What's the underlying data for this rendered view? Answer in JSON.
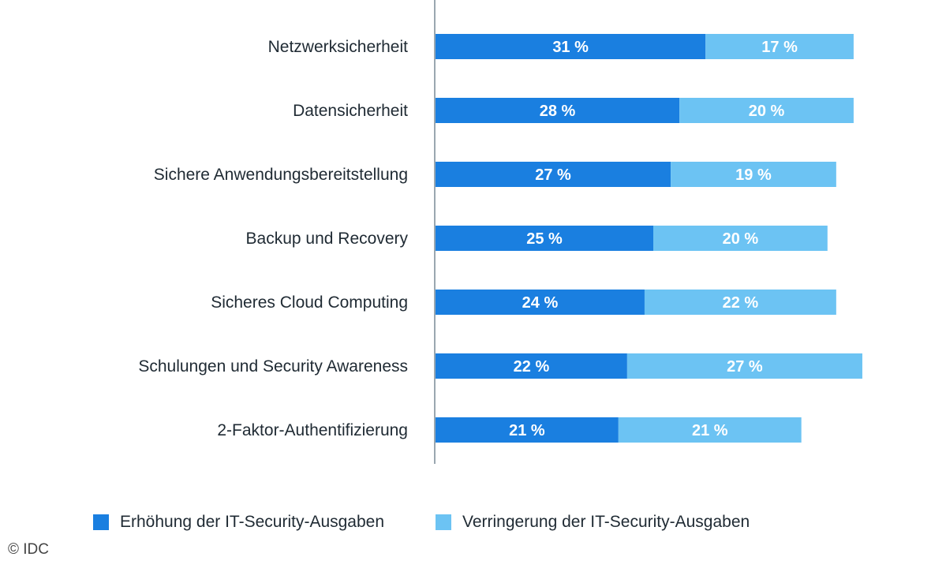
{
  "chart_data": {
    "type": "bar",
    "orientation": "horizontal",
    "stacked": true,
    "categories": [
      "Netzwerksicherheit",
      "Datensicherheit",
      "Sichere Anwendungsbereitstellung",
      "Backup und Recovery",
      "Sicheres Cloud Computing",
      "Schulungen und Security Awareness",
      "2-Faktor-Authentifizierung"
    ],
    "series": [
      {
        "name": "Erhöhung der IT-Security-Ausgaben",
        "color": "#1a7fe0",
        "values": [
          31,
          28,
          27,
          25,
          24,
          22,
          21
        ],
        "labels": [
          "31 %",
          "28 %",
          "27 %",
          "25 %",
          "24 %",
          "22 %",
          "21 %"
        ]
      },
      {
        "name": "Verringerung der IT-Security-Ausgaben",
        "color": "#6cc3f3",
        "values": [
          17,
          20,
          19,
          20,
          22,
          27,
          21
        ],
        "labels": [
          "17 %",
          "20 %",
          "19 %",
          "20 %",
          "22 %",
          "27 %",
          "21 %"
        ]
      }
    ],
    "xlim": [
      0,
      50
    ],
    "grid": false,
    "legend_position": "bottom"
  },
  "legend": {
    "increase_label": "Erhöhung der IT-Security-Ausgaben",
    "decrease_label": "Verringerung der IT-Security-Ausgaben"
  },
  "colors": {
    "increase": "#1a7fe0",
    "decrease": "#6cc3f3",
    "axis": "#9aa7b0"
  },
  "copyright": "© IDC"
}
